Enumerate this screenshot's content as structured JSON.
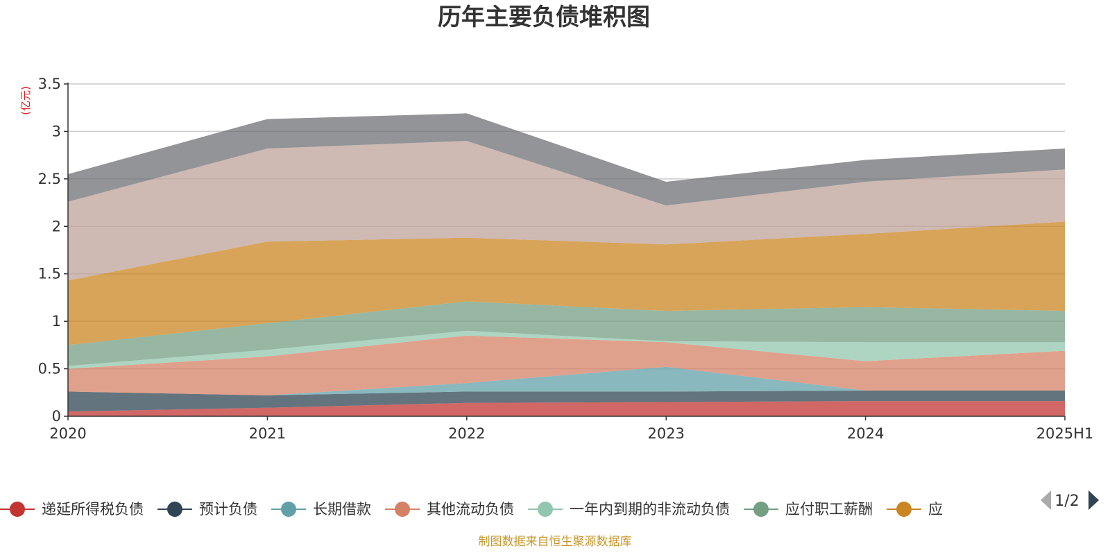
{
  "chart_data": {
    "type": "area",
    "stacked": true,
    "title": "历年主要负债堆积图",
    "unit": "(亿元)",
    "categories": [
      "2020",
      "2021",
      "2022",
      "2023",
      "2024",
      "2025H1"
    ],
    "ylim": [
      0,
      3.5
    ],
    "yticks": [
      "0",
      "0.5",
      "1",
      "1.5",
      "2",
      "2.5",
      "3",
      "3.5"
    ],
    "grid": true,
    "legend_position": "bottom",
    "series": [
      {
        "name": "递延所得税负债",
        "color": "#c23531",
        "values": [
          0.05,
          0.09,
          0.14,
          0.15,
          0.16,
          0.16
        ]
      },
      {
        "name": "预计负债",
        "color": "#2f4554",
        "values": [
          0.21,
          0.13,
          0.12,
          0.11,
          0.11,
          0.11
        ]
      },
      {
        "name": "长期借款",
        "color": "#61a0a8",
        "values": [
          0,
          0,
          0.09,
          0.26,
          0,
          0
        ]
      },
      {
        "name": "其他流动负债",
        "color": "#d48265",
        "values": [
          0.24,
          0.41,
          0.5,
          0.26,
          0.31,
          0.42
        ]
      },
      {
        "name": "一年内到期的非流动负债",
        "color": "#91c7ae",
        "values": [
          0.03,
          0.07,
          0.05,
          0.01,
          0.2,
          0.09
        ]
      },
      {
        "name": "应付职工薪酬",
        "color": "#749f83",
        "values": [
          0.22,
          0.28,
          0.31,
          0.32,
          0.37,
          0.33
        ]
      },
      {
        "name": "应",
        "color": "#ca8622",
        "values": [
          0.68,
          0.86,
          0.67,
          0.7,
          0.77,
          0.94
        ]
      },
      {
        "name": "",
        "color": "#bda29a",
        "values": [
          0.83,
          0.98,
          1.02,
          0.41,
          0.55,
          0.55
        ]
      },
      {
        "name": "",
        "color": "#6e7074",
        "values": [
          0.29,
          0.31,
          0.29,
          0.25,
          0.23,
          0.22
        ]
      }
    ]
  },
  "legend": {
    "page_indicator": "1/2",
    "prev_icon": "triangle-left-icon",
    "next_icon": "triangle-right-icon"
  },
  "source_note": "制图数据来自恒生聚源数据库"
}
